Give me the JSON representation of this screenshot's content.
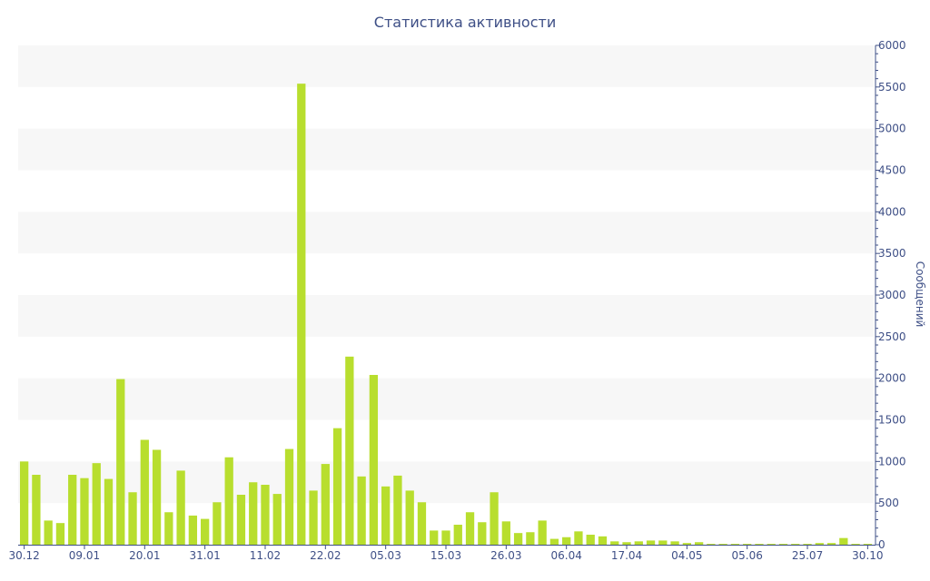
{
  "chart_data": {
    "type": "bar",
    "title": "Статистика активности",
    "ylabel": "Сообщений",
    "ylim": [
      0,
      6000
    ],
    "yticks": [
      0,
      500,
      1000,
      1500,
      2000,
      2500,
      3000,
      3500,
      4000,
      4500,
      5000,
      5500,
      6000
    ],
    "x_tick_labels": [
      "30.12",
      "09.01",
      "20.01",
      "31.01",
      "11.02",
      "22.02",
      "05.03",
      "15.03",
      "26.03",
      "06.04",
      "17.04",
      "04.05",
      "05.06",
      "25.07",
      "30.10"
    ],
    "x_tick_bar_index": [
      0,
      5,
      10,
      15,
      20,
      25,
      30,
      35,
      40,
      45,
      50,
      55,
      60,
      65,
      70
    ],
    "values": [
      1000,
      840,
      290,
      260,
      840,
      800,
      980,
      790,
      1990,
      630,
      1260,
      1140,
      390,
      890,
      350,
      310,
      510,
      1050,
      600,
      750,
      720,
      610,
      1150,
      5540,
      650,
      970,
      1400,
      2260,
      820,
      2040,
      700,
      830,
      650,
      510,
      170,
      170,
      240,
      390,
      270,
      630,
      280,
      140,
      150,
      290,
      70,
      90,
      160,
      120,
      100,
      40,
      30,
      40,
      50,
      50,
      40,
      20,
      30,
      10,
      10,
      10,
      10,
      10,
      10,
      10,
      10,
      10,
      20,
      20,
      80,
      10,
      10
    ],
    "colors": {
      "bar": "#b8de2e",
      "band": "#f7f7f7",
      "axis": "#3e4f86"
    }
  }
}
